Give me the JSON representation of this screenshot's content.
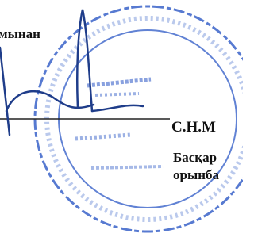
{
  "fragment": {
    "left_text": "мынан",
    "signature_name": "С.Н.М",
    "position_line_1": "Басқар",
    "position_line_2": "орынба"
  }
}
